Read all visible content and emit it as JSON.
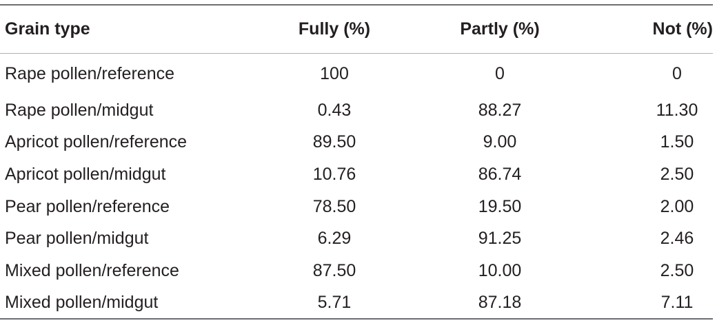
{
  "table": {
    "headers": [
      "Grain type",
      "Fully (%)",
      "Partly (%)",
      "Not (%)"
    ],
    "rows": [
      [
        "Rape pollen/reference",
        "100",
        "0",
        "0"
      ],
      [
        "Rape pollen/midgut",
        "0.43",
        "88.27",
        "11.30"
      ],
      [
        "Apricot pollen/reference",
        "89.50",
        "9.00",
        "1.50"
      ],
      [
        "Apricot pollen/midgut",
        "10.76",
        "86.74",
        "2.50"
      ],
      [
        "Pear pollen/reference",
        "78.50",
        "19.50",
        "2.00"
      ],
      [
        "Pear pollen/midgut",
        "6.29",
        "91.25",
        "2.46"
      ],
      [
        "Mixed pollen/reference",
        "87.50",
        "10.00",
        "2.50"
      ],
      [
        "Mixed pollen/midgut",
        "5.71",
        "87.18",
        "7.11"
      ]
    ]
  }
}
